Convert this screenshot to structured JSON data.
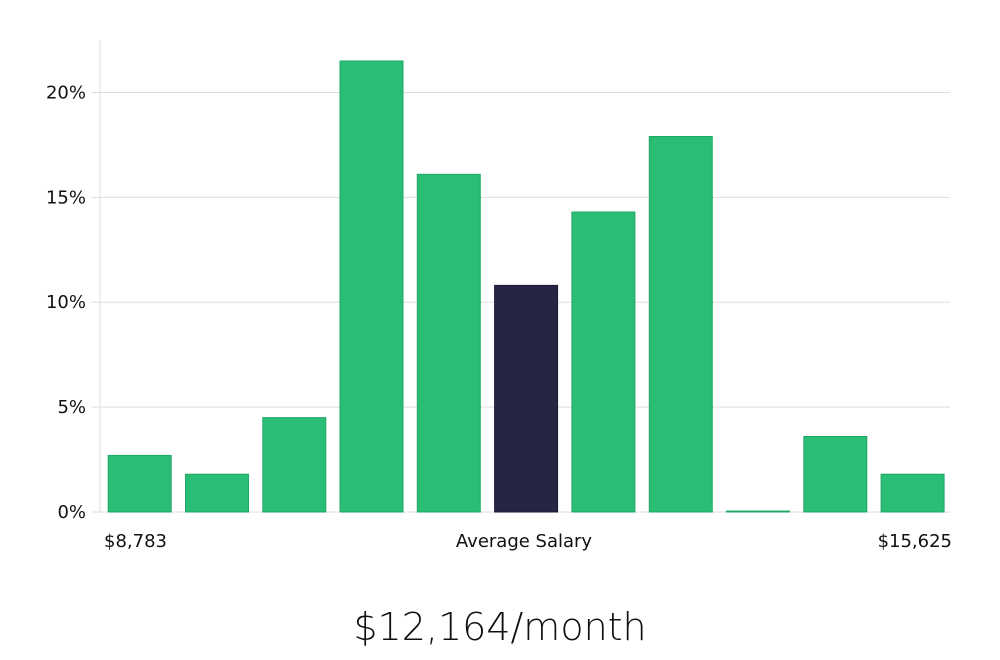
{
  "chart_data": {
    "type": "bar",
    "title": "",
    "xlabel": "Average Salary",
    "ylabel": "",
    "x_min_label": "$8,783",
    "x_max_label": "$15,625",
    "ylim": [
      0,
      22.5
    ],
    "y_ticks": [
      0,
      5,
      10,
      15,
      20
    ],
    "y_tick_labels": [
      "0%",
      "5%",
      "10%",
      "15%",
      "20%"
    ],
    "values": [
      2.7,
      1.8,
      4.5,
      21.5,
      16.1,
      10.8,
      14.3,
      17.9,
      0.05,
      3.6,
      1.8
    ],
    "highlight_index": 5,
    "grid": true,
    "colors": {
      "bar": "#2abd75",
      "highlight": "#272544",
      "grid": "#dddddd",
      "axis": "#dddddd"
    }
  },
  "summary": {
    "headline": "$12,164/month"
  }
}
